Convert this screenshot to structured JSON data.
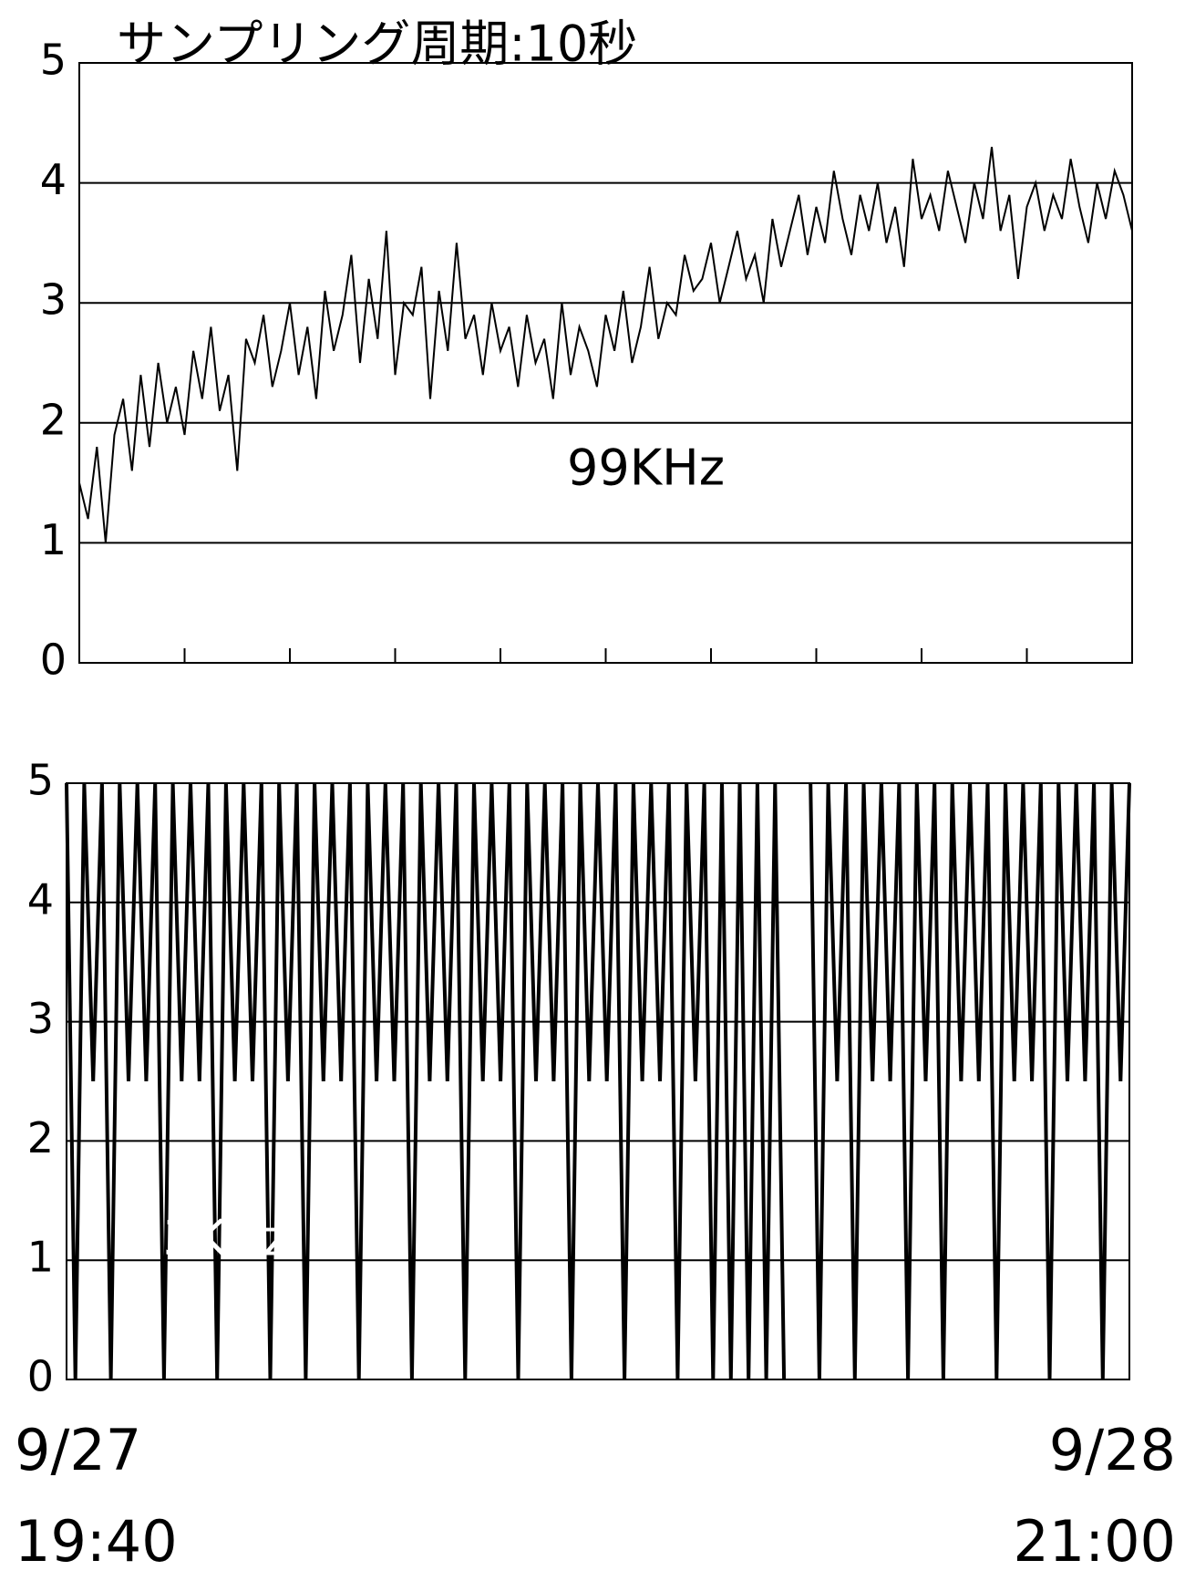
{
  "chart_data": [
    {
      "type": "line",
      "title": "サンプリング周期:10秒",
      "annotation": "99KHz",
      "color": "#000000",
      "ylim": [
        0,
        5
      ],
      "yticks": [
        0,
        1,
        2,
        3,
        4,
        5
      ],
      "grid": true,
      "xlim": [
        0,
        120
      ],
      "xticks": [
        0,
        12,
        24,
        36,
        48,
        60,
        72,
        84,
        96,
        108,
        120
      ],
      "values": [
        1.5,
        1.2,
        1.8,
        1.0,
        1.9,
        2.2,
        1.6,
        2.4,
        1.8,
        2.5,
        2.0,
        2.3,
        1.9,
        2.6,
        2.2,
        2.8,
        2.1,
        2.4,
        1.6,
        2.7,
        2.5,
        2.9,
        2.3,
        2.6,
        3.0,
        2.4,
        2.8,
        2.2,
        3.1,
        2.6,
        2.9,
        3.4,
        2.5,
        3.2,
        2.7,
        3.6,
        2.4,
        3.0,
        2.9,
        3.3,
        2.2,
        3.1,
        2.6,
        3.5,
        2.7,
        2.9,
        2.4,
        3.0,
        2.6,
        2.8,
        2.3,
        2.9,
        2.5,
        2.7,
        2.2,
        3.0,
        2.4,
        2.8,
        2.6,
        2.3,
        2.9,
        2.6,
        3.1,
        2.5,
        2.8,
        3.3,
        2.7,
        3.0,
        2.9,
        3.4,
        3.1,
        3.2,
        3.5,
        3.0,
        3.3,
        3.6,
        3.2,
        3.4,
        3.0,
        3.7,
        3.3,
        3.6,
        3.9,
        3.4,
        3.8,
        3.5,
        4.1,
        3.7,
        3.4,
        3.9,
        3.6,
        4.0,
        3.5,
        3.8,
        3.3,
        4.2,
        3.7,
        3.9,
        3.6,
        4.1,
        3.8,
        3.5,
        4.0,
        3.7,
        4.3,
        3.6,
        3.9,
        3.2,
        3.8,
        4.0,
        3.6,
        3.9,
        3.7,
        4.2,
        3.8,
        3.5,
        4.0,
        3.7,
        4.1,
        3.9,
        3.6
      ]
    },
    {
      "type": "line",
      "annotation": "13KHz",
      "color": "#000000",
      "ylim": [
        0,
        5
      ],
      "yticks": [
        0,
        1,
        2,
        3,
        4,
        5
      ],
      "grid": true,
      "xlim": [
        0,
        120
      ],
      "xticks": [
        {
          "value": 0,
          "label": "9/27 19:40"
        },
        {
          "value": 120,
          "label": "9/28 21:00"
        }
      ],
      "values": [
        5,
        0,
        5,
        2.5,
        5,
        0,
        5,
        2.5,
        5,
        2.5,
        5,
        0,
        5,
        2.5,
        5,
        2.5,
        5,
        0,
        5,
        2.5,
        5,
        2.5,
        5,
        0,
        5,
        2.5,
        5,
        0,
        5,
        2.5,
        5,
        2.5,
        5,
        0,
        5,
        2.5,
        5,
        2.5,
        5,
        0,
        5,
        2.5,
        5,
        2.5,
        5,
        0,
        5,
        2.5,
        5,
        2.5,
        5,
        0,
        5,
        2.5,
        5,
        2.5,
        5,
        0,
        5,
        2.5,
        5,
        2.5,
        5,
        0,
        5,
        2.5,
        5,
        2.5,
        5,
        0,
        5,
        2.5,
        5,
        0,
        5,
        0,
        5,
        0,
        5,
        0,
        5,
        0,
        null,
        null,
        5,
        0,
        5,
        2.5,
        5,
        0,
        5,
        2.5,
        5,
        2.5,
        5,
        0,
        5,
        2.5,
        5,
        0,
        5,
        2.5,
        5,
        2.5,
        5,
        0,
        5,
        2.5,
        5,
        2.5,
        5,
        0,
        5,
        2.5,
        5,
        2.5,
        5,
        0,
        5,
        2.5,
        5
      ]
    }
  ]
}
